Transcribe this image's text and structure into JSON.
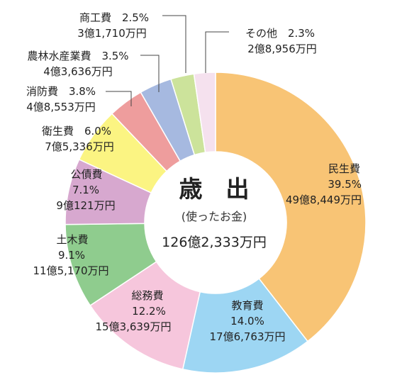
{
  "chart_data": {
    "type": "pie",
    "variant": "donut",
    "title": "歳　出",
    "subtitle": "(使ったお金)",
    "total": "126億2,333万円",
    "slices": [
      {
        "name": "民生費",
        "percent": 39.5,
        "pct_label": "39.5%",
        "amount": "49億8,449万円",
        "color": "#F8C475"
      },
      {
        "name": "教育費",
        "percent": 14.0,
        "pct_label": "14.0%",
        "amount": "17億6,763万円",
        "color": "#9DD6F3"
      },
      {
        "name": "総務費",
        "percent": 12.2,
        "pct_label": "12.2%",
        "amount": "15億3,639万円",
        "color": "#F6C6DC"
      },
      {
        "name": "土木費",
        "percent": 9.1,
        "pct_label": "9.1%",
        "amount": "11億5,170万円",
        "color": "#8FCC8E"
      },
      {
        "name": "公債費",
        "percent": 7.1,
        "pct_label": "7.1%",
        "amount": "9億121万円",
        "color": "#D7A8CF"
      },
      {
        "name": "衛生費",
        "percent": 6.0,
        "pct_label": "6.0%",
        "amount": "7億5,336万円",
        "color": "#FBF482"
      },
      {
        "name": "消防費",
        "percent": 3.8,
        "pct_label": "3.8%",
        "amount": "4億8,553万円",
        "color": "#EE9D9D"
      },
      {
        "name": "農林水産業費",
        "percent": 3.5,
        "pct_label": "3.5%",
        "amount": "4億3,636万円",
        "color": "#A6B9E0"
      },
      {
        "name": "商工費",
        "percent": 2.5,
        "pct_label": "2.5%",
        "amount": "3億1,710万円",
        "color": "#CCE39B"
      },
      {
        "name": "その他",
        "percent": 2.3,
        "pct_label": "2.3%",
        "amount": "2億8,956万円",
        "color": "#F5E1EE"
      }
    ]
  }
}
